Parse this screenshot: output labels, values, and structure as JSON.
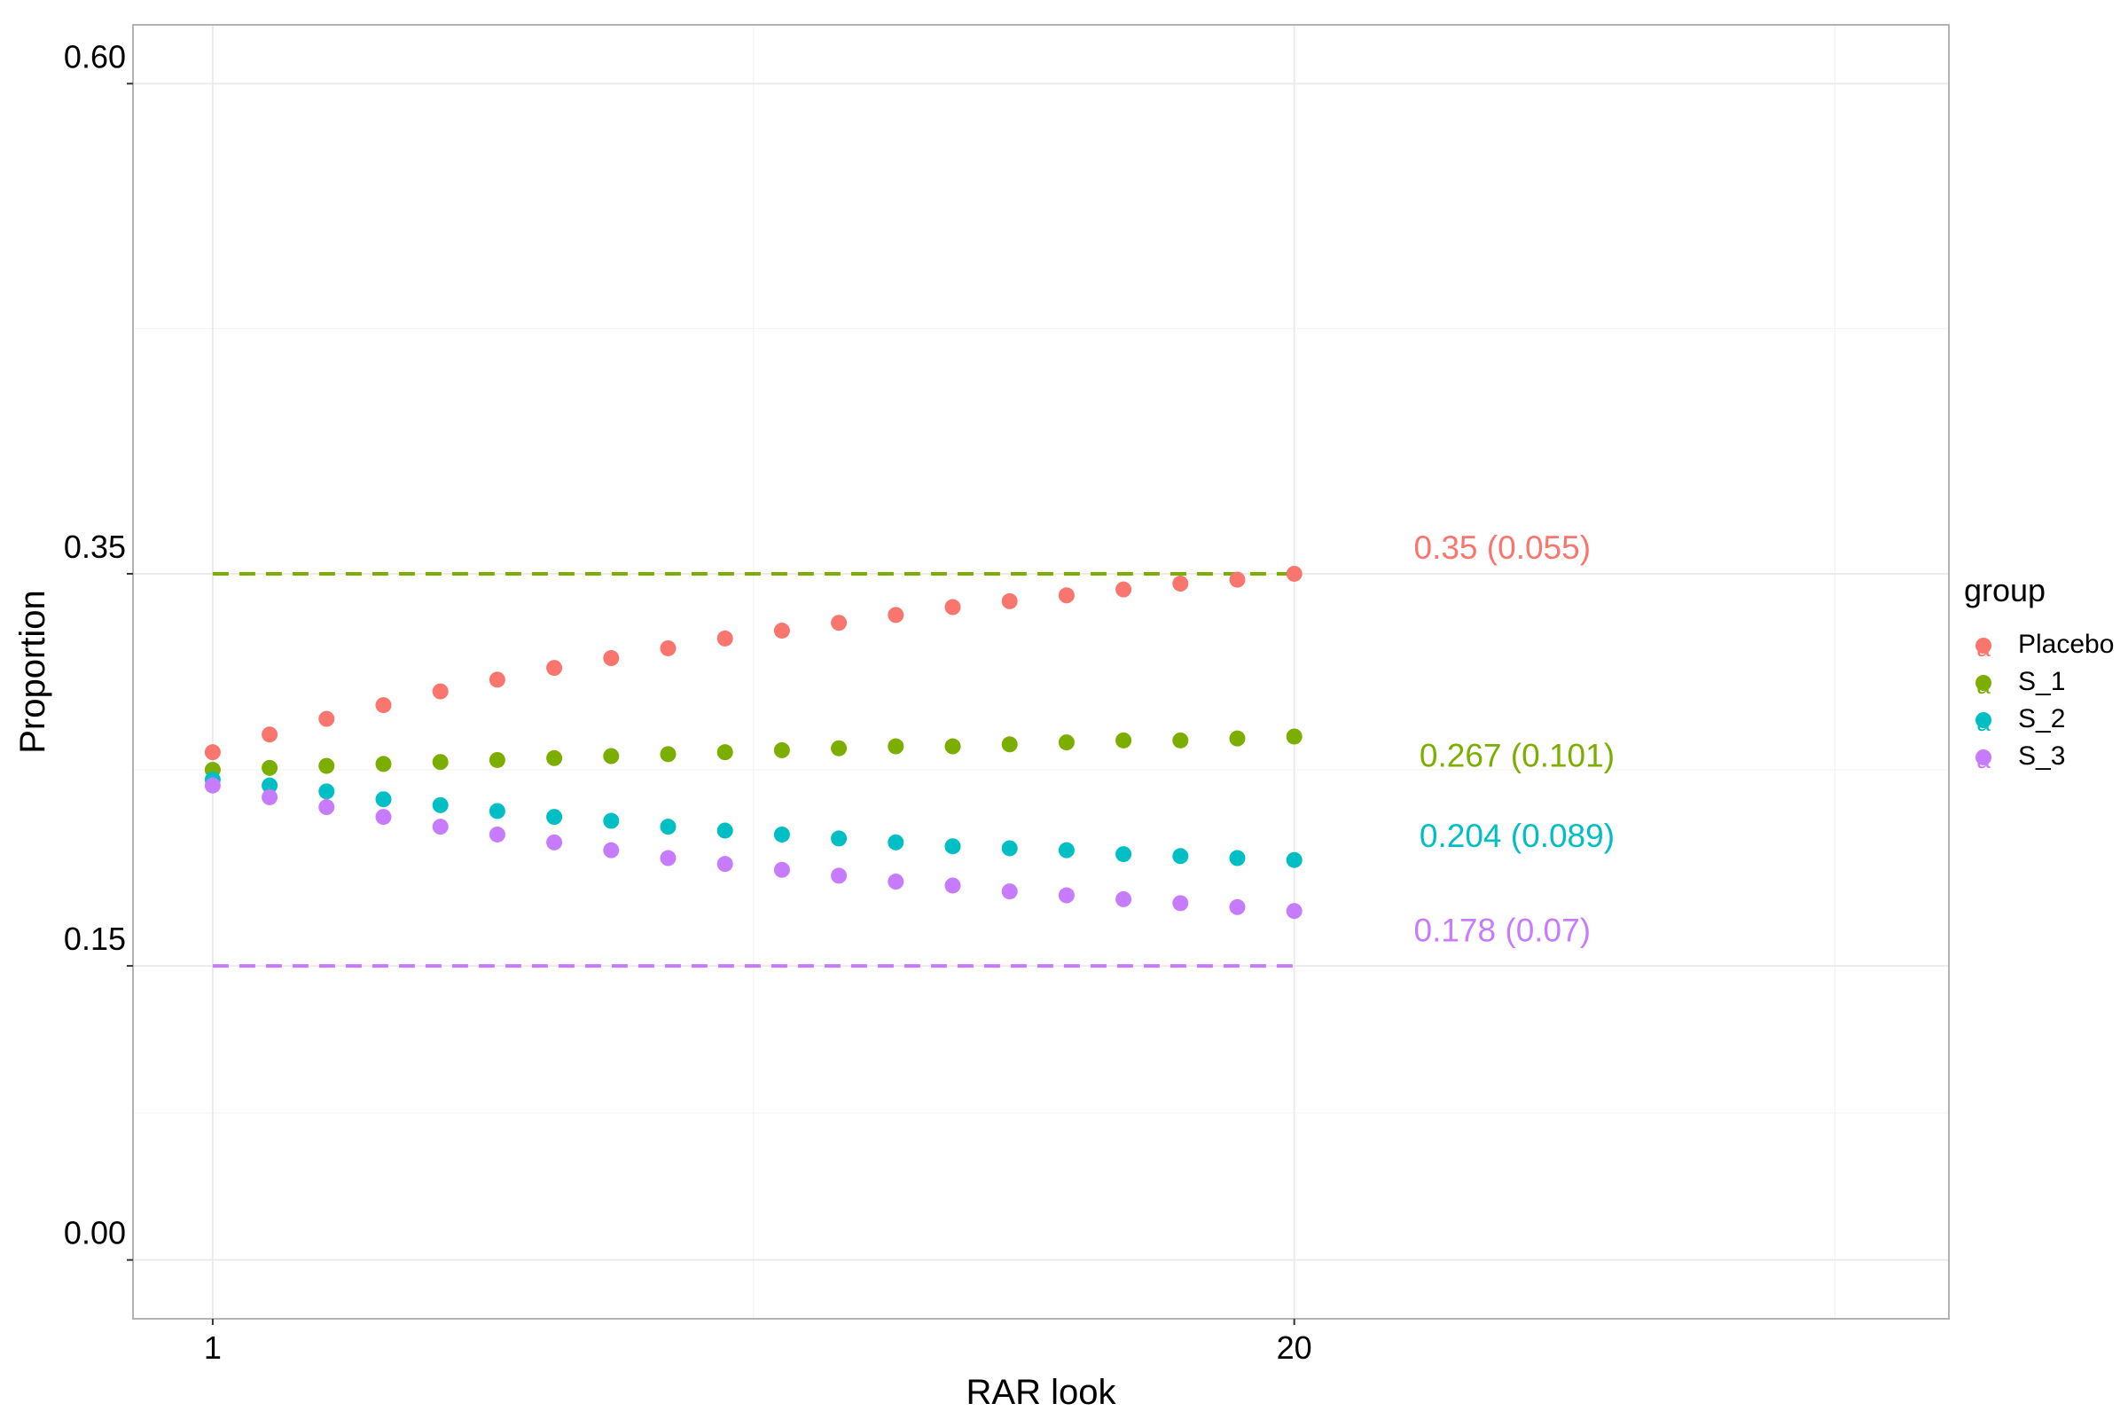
{
  "chart_data": {
    "type": "scatter",
    "xlabel": "RAR look",
    "ylabel": "Proportion",
    "x_ticks": [
      1,
      20
    ],
    "x_tick_labels": [
      "1",
      "20"
    ],
    "y_ticks": [
      0.0,
      0.15,
      0.35,
      0.6
    ],
    "y_tick_labels": [
      "0.00",
      "0.15",
      "0.35",
      "0.60"
    ],
    "xlim": [
      -0.4,
      31.5
    ],
    "ylim": [
      -0.03,
      0.63
    ],
    "grid": true,
    "legend": {
      "title": "group",
      "position": "right",
      "entries": [
        "Placebo",
        "S_1",
        "S_2",
        "S_3"
      ],
      "key_glyph": "a"
    },
    "x": [
      1,
      2,
      3,
      4,
      5,
      6,
      7,
      8,
      9,
      10,
      11,
      12,
      13,
      14,
      15,
      16,
      17,
      18,
      19,
      20
    ],
    "series": [
      {
        "name": "Placebo",
        "color": "#F8766D",
        "values": [
          0.259,
          0.268,
          0.276,
          0.283,
          0.29,
          0.296,
          0.302,
          0.307,
          0.312,
          0.317,
          0.321,
          0.325,
          0.329,
          0.333,
          0.336,
          0.339,
          0.342,
          0.345,
          0.347,
          0.35
        ]
      },
      {
        "name": "S_1",
        "color": "#7CAE00",
        "values": [
          0.25,
          0.251,
          0.252,
          0.253,
          0.254,
          0.255,
          0.256,
          0.257,
          0.258,
          0.259,
          0.26,
          0.261,
          0.262,
          0.262,
          0.263,
          0.264,
          0.265,
          0.265,
          0.266,
          0.267
        ]
      },
      {
        "name": "S_2",
        "color": "#00BFC4",
        "values": [
          0.245,
          0.242,
          0.239,
          0.235,
          0.232,
          0.229,
          0.226,
          0.224,
          0.221,
          0.219,
          0.217,
          0.215,
          0.213,
          0.211,
          0.21,
          0.209,
          0.207,
          0.206,
          0.205,
          0.204
        ]
      },
      {
        "name": "S_3",
        "color": "#C77CFF",
        "values": [
          0.242,
          0.236,
          0.231,
          0.226,
          0.221,
          0.217,
          0.213,
          0.209,
          0.205,
          0.202,
          0.199,
          0.196,
          0.193,
          0.191,
          0.188,
          0.186,
          0.184,
          0.182,
          0.18,
          0.178
        ]
      }
    ],
    "reference_lines": [
      {
        "y": 0.35,
        "x_from": 1,
        "x_to": 20,
        "style": "dashed",
        "color": "#7CAE00"
      },
      {
        "y": 0.15,
        "x_from": 1,
        "x_to": 20,
        "style": "dashed",
        "color": "#C77CFF"
      }
    ],
    "annotations": [
      {
        "text": "0.35 (0.055)",
        "x": 22.1,
        "y": 0.362,
        "color": "#F8766D"
      },
      {
        "text": "0.267 (0.101)",
        "x": 22.2,
        "y": 0.256,
        "color": "#7CAE00"
      },
      {
        "text": "0.204 (0.089)",
        "x": 22.2,
        "y": 0.215,
        "color": "#00BFC4"
      },
      {
        "text": "0.178 (0.07)",
        "x": 22.1,
        "y": 0.167,
        "color": "#C77CFF"
      }
    ]
  }
}
